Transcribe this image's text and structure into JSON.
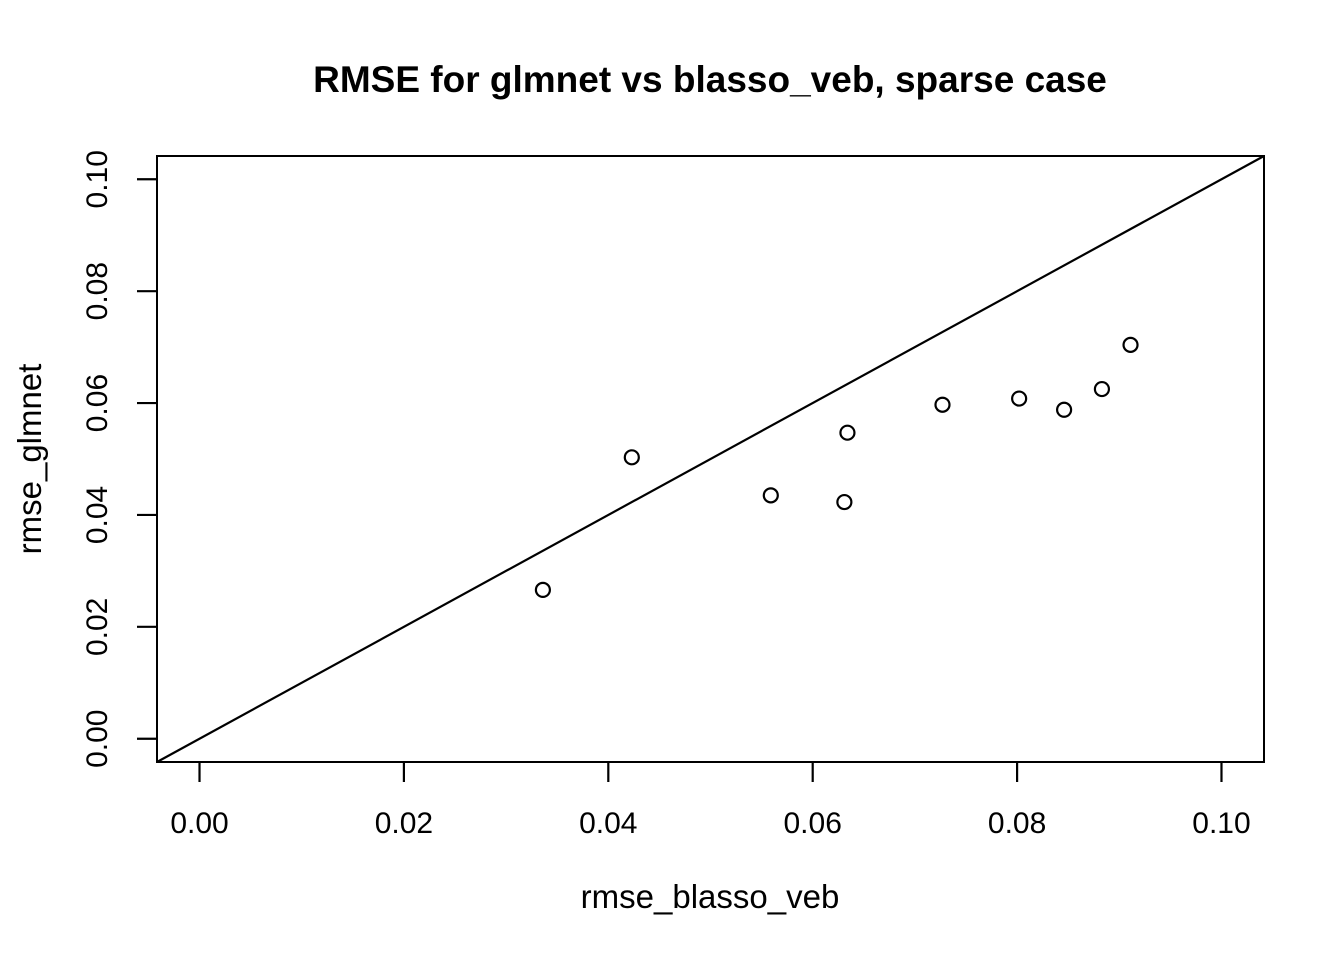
{
  "chart_data": {
    "type": "scatter",
    "title": "RMSE for glmnet vs blasso_veb, sparse case",
    "xlabel": "rmse_blasso_veb",
    "ylabel": "rmse_glmnet",
    "xlim": [
      -0.00416,
      0.10416
    ],
    "ylim": [
      -0.00416,
      0.10416
    ],
    "ticks": {
      "values": [
        0.0,
        0.02,
        0.04,
        0.06,
        0.08,
        0.1
      ],
      "labels": [
        "0.00",
        "0.02",
        "0.04",
        "0.06",
        "0.08",
        "0.10"
      ]
    },
    "points": [
      {
        "x": 0.0336,
        "y": 0.0266
      },
      {
        "x": 0.0423,
        "y": 0.0503
      },
      {
        "x": 0.0559,
        "y": 0.0435
      },
      {
        "x": 0.0631,
        "y": 0.0423
      },
      {
        "x": 0.0634,
        "y": 0.0547
      },
      {
        "x": 0.0727,
        "y": 0.0597
      },
      {
        "x": 0.0802,
        "y": 0.0608
      },
      {
        "x": 0.0846,
        "y": 0.0588
      },
      {
        "x": 0.0883,
        "y": 0.0625
      },
      {
        "x": 0.0911,
        "y": 0.0704
      }
    ],
    "reference_line": {
      "slope": 1,
      "intercept": 0
    },
    "marker": "open-circle",
    "grid": false,
    "legend_position": "none",
    "colors": {
      "foreground": "#000000",
      "background": "#ffffff"
    }
  }
}
